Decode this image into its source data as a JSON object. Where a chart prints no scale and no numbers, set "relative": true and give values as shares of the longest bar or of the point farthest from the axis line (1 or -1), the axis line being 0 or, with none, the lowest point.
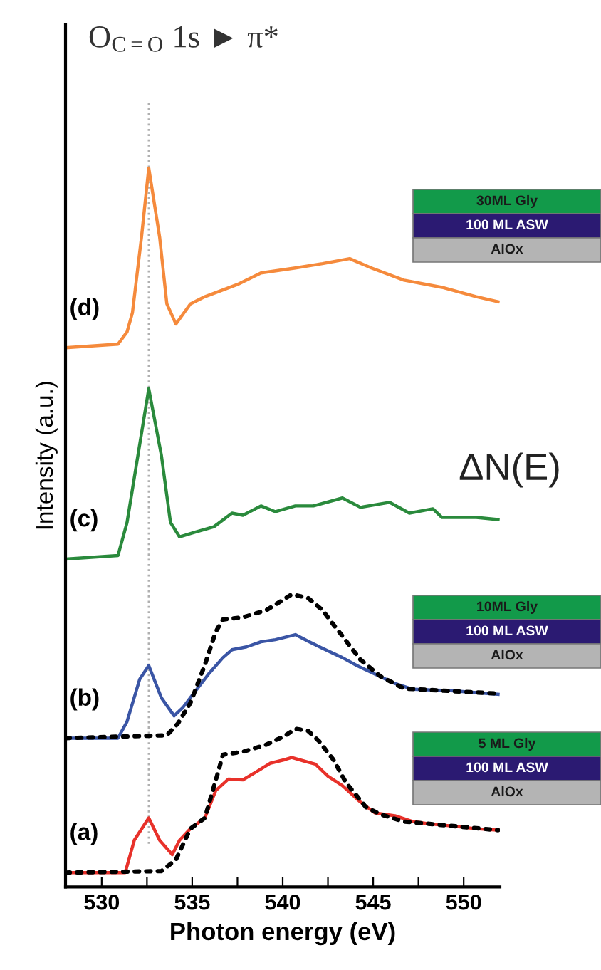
{
  "chart_data": {
    "type": "line",
    "relative": true,
    "title": "O$_{C=O}$ 1s ► π*",
    "xlabel": "Photon energy (eV)",
    "ylabel": "Intensity (a.u.)",
    "xlim": [
      528,
      552
    ],
    "xticks": [
      530,
      {
        "value": 532.5,
        "label": null
      },
      535,
      {
        "value": 537.5,
        "label": null
      },
      540,
      {
        "value": 542.5,
        "label": null
      },
      545,
      {
        "value": 547.5,
        "label": null
      },
      550
    ],
    "tick_labels": "x",
    "grid": false,
    "ref_lines": [
      {
        "axis": "x",
        "value": 532.6,
        "color": "#b0b0b0",
        "line_style": "dotted"
      }
    ],
    "annotations": [
      "ΔN(E)",
      "30ML Gly",
      "100 ML ASW",
      "AlOx",
      "10ML Gly",
      "100 ML ASW",
      "AlOx",
      "5 ML Gly",
      "100 ML ASW",
      "AlOx"
    ],
    "series": [
      {
        "name": "(a)",
        "color": "#e8312a",
        "x": [
          528.0,
          531.3,
          531.8,
          532.6,
          533.2,
          533.9,
          534.3,
          534.9,
          535.7,
          536.3,
          537.0,
          537.8,
          538.6,
          539.3,
          540.1,
          540.5,
          541.2,
          541.8,
          542.5,
          543.3,
          544.3,
          545.1,
          546.2,
          547.2,
          548.0,
          549.3,
          550.7,
          551.9
        ],
        "values": [
          0.02,
          0.02,
          0.065,
          0.096,
          0.065,
          0.045,
          0.065,
          0.081,
          0.096,
          0.134,
          0.15,
          0.149,
          0.161,
          0.172,
          0.177,
          0.18,
          0.175,
          0.171,
          0.154,
          0.141,
          0.118,
          0.103,
          0.099,
          0.091,
          0.088,
          0.085,
          0.081,
          0.079
        ]
      },
      {
        "color": "#000000",
        "line_style": "dotted",
        "x": [
          528.0,
          533.3,
          534.1,
          534.9,
          535.7,
          536.4,
          536.7,
          537.8,
          539.1,
          540.1,
          540.7,
          541.4,
          542.0,
          542.8,
          543.5,
          544.6,
          545.4,
          546.7,
          551.9
        ],
        "values": [
          0.02,
          0.022,
          0.038,
          0.081,
          0.096,
          0.157,
          0.184,
          0.188,
          0.198,
          0.21,
          0.22,
          0.217,
          0.203,
          0.177,
          0.145,
          0.111,
          0.101,
          0.091,
          0.079
        ]
      },
      {
        "name": "(b)",
        "color": "#3a55a5",
        "x": [
          528.0,
          530.9,
          531.4,
          532.1,
          532.6,
          533.3,
          534.0,
          534.5,
          535.1,
          535.9,
          536.7,
          537.2,
          538.0,
          538.8,
          539.6,
          540.7,
          541.4,
          542.2,
          543.3,
          544.1,
          545.1,
          546.2,
          547.2,
          549.3,
          551.9
        ],
        "values": [
          0.207,
          0.207,
          0.23,
          0.289,
          0.308,
          0.263,
          0.238,
          0.25,
          0.27,
          0.296,
          0.319,
          0.33,
          0.334,
          0.341,
          0.344,
          0.351,
          0.342,
          0.332,
          0.319,
          0.308,
          0.296,
          0.283,
          0.275,
          0.273,
          0.268
        ]
      },
      {
        "color": "#000000",
        "line_style": "dotted",
        "x": [
          528.0,
          533.6,
          534.2,
          534.9,
          535.7,
          536.3,
          536.7,
          537.8,
          539.1,
          540.5,
          541.4,
          542.2,
          542.8,
          543.3,
          544.3,
          545.4,
          546.7,
          551.9
        ],
        "values": [
          0.207,
          0.211,
          0.227,
          0.256,
          0.309,
          0.355,
          0.372,
          0.375,
          0.385,
          0.407,
          0.402,
          0.385,
          0.365,
          0.349,
          0.316,
          0.293,
          0.276,
          0.269
        ]
      },
      {
        "name": "(c)",
        "color": "#2a8a3c",
        "x": [
          528.0,
          530.9,
          531.4,
          532.0,
          532.6,
          533.3,
          533.8,
          534.3,
          535.1,
          536.2,
          537.2,
          537.8,
          538.8,
          539.6,
          540.7,
          541.7,
          543.3,
          544.3,
          545.9,
          547.0,
          548.3,
          548.8,
          550.7,
          551.9
        ],
        "values": [
          0.456,
          0.461,
          0.507,
          0.6,
          0.693,
          0.6,
          0.507,
          0.487,
          0.493,
          0.501,
          0.52,
          0.517,
          0.53,
          0.522,
          0.53,
          0.53,
          0.541,
          0.528,
          0.535,
          0.52,
          0.526,
          0.514,
          0.514,
          0.511
        ]
      },
      {
        "name": "(d)",
        "color": "#f58a3c",
        "x": [
          528.0,
          530.9,
          531.4,
          531.7,
          532.2,
          532.6,
          533.2,
          533.6,
          534.1,
          534.9,
          535.7,
          537.5,
          538.8,
          540.7,
          542.2,
          543.7,
          544.9,
          546.7,
          548.8,
          550.7,
          551.9
        ],
        "values": [
          0.75,
          0.755,
          0.772,
          0.799,
          0.904,
          1.0,
          0.904,
          0.811,
          0.783,
          0.811,
          0.821,
          0.838,
          0.854,
          0.861,
          0.867,
          0.874,
          0.861,
          0.844,
          0.834,
          0.821,
          0.814
        ]
      }
    ]
  }
}
